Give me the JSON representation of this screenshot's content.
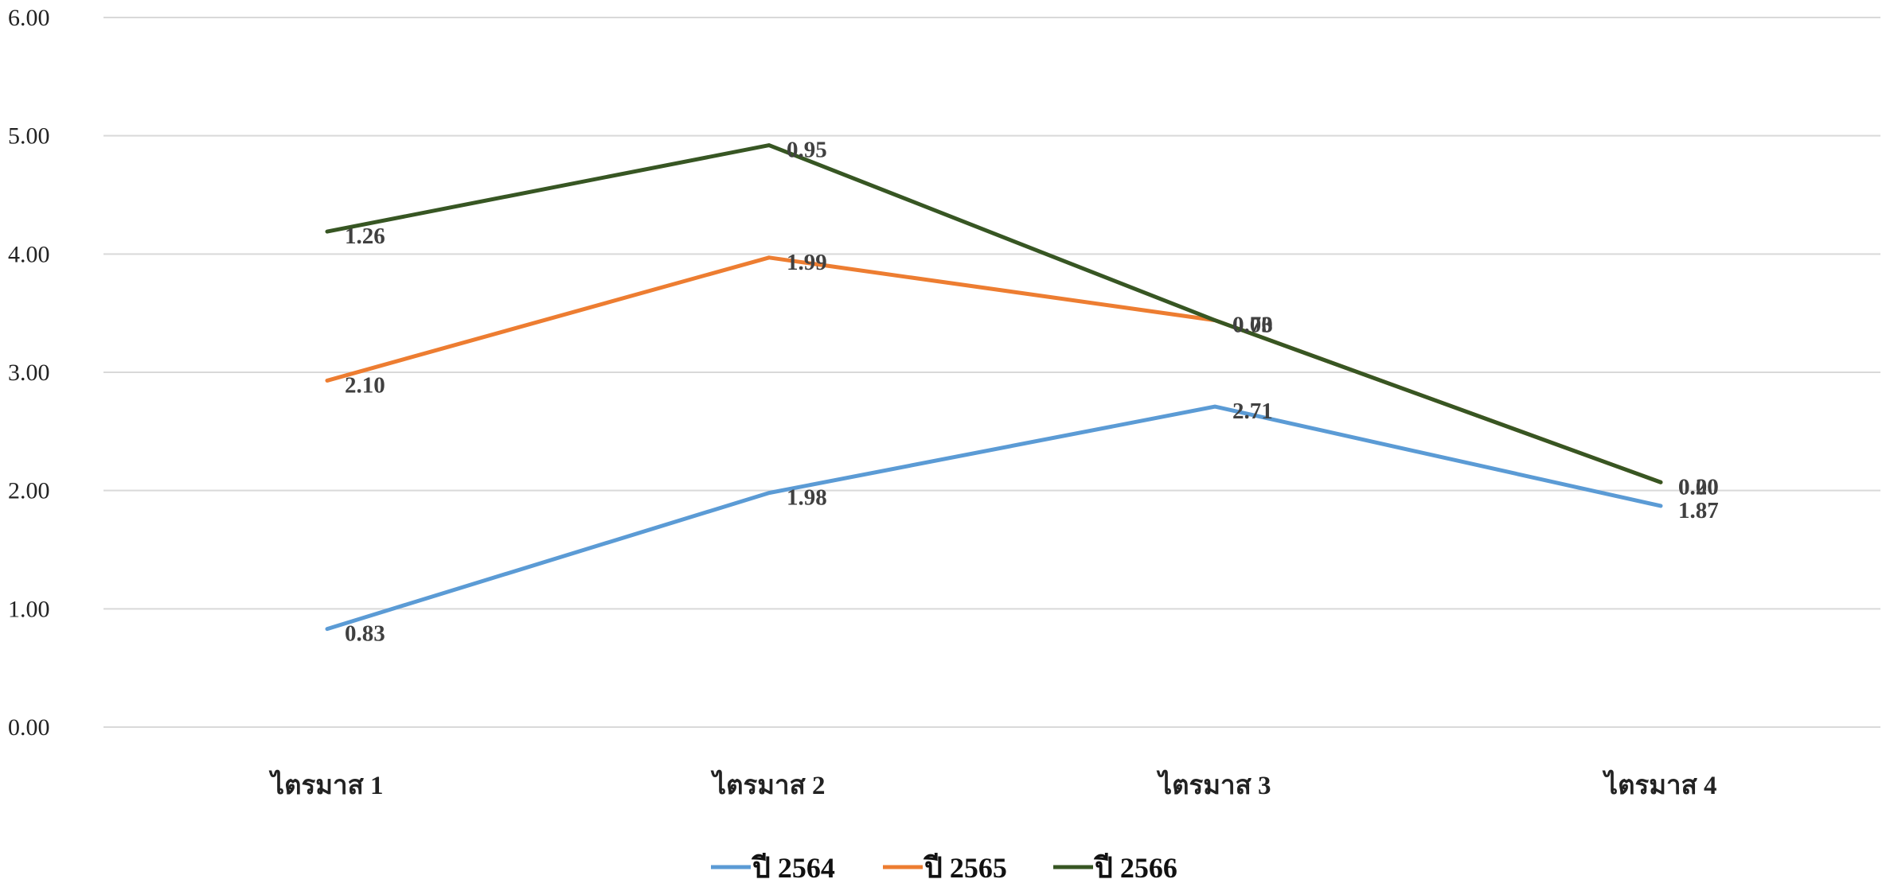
{
  "chart_data": {
    "type": "line",
    "categories": [
      "ไตรมาส 1",
      "ไตรมาส 2",
      "ไตรมาส 3",
      "ไตรมาส 4"
    ],
    "ylim": [
      0,
      6
    ],
    "y_ticks": [
      "0.00",
      "1.00",
      "2.00",
      "3.00",
      "4.00",
      "5.00",
      "6.00"
    ],
    "grid": true,
    "stacked": true,
    "legend_position": "bottom",
    "series": [
      {
        "name": "ปี 2564",
        "color": "#5b9bd5",
        "values": [
          0.83,
          1.98,
          2.71,
          1.87
        ],
        "cumulative": [
          0.83,
          1.98,
          2.71,
          1.87
        ],
        "labels": [
          "0.83",
          "1.98",
          "2.71",
          "1.87"
        ]
      },
      {
        "name": "ปี 2565",
        "color": "#ed7d31",
        "values": [
          2.1,
          1.99,
          0.73,
          0.2
        ],
        "cumulative": [
          2.93,
          3.97,
          3.44,
          2.07
        ],
        "labels": [
          "2.10",
          "1.99",
          "0.73",
          "0.20"
        ]
      },
      {
        "name": "ปี 2566",
        "color": "#375623",
        "values": [
          1.26,
          0.95,
          0.0,
          0.0
        ],
        "cumulative": [
          4.19,
          4.92,
          3.44,
          2.07
        ],
        "labels": [
          "1.26",
          "0.95",
          "0.00",
          "0.00"
        ]
      }
    ]
  }
}
